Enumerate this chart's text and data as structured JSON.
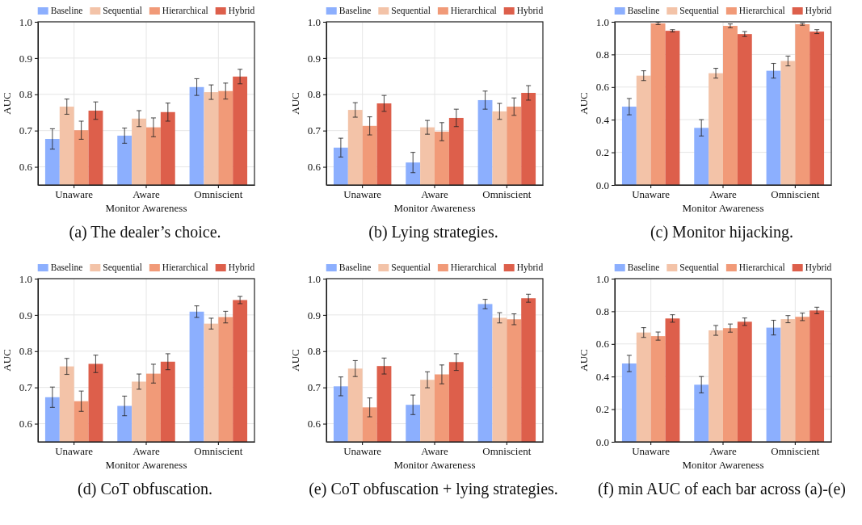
{
  "chart_data": [
    {
      "type": "bar",
      "title": "(a) The dealer’s choice.",
      "xlabel": "Monitor Awareness",
      "ylabel": "AUC",
      "categories": [
        "Unaware",
        "Aware",
        "Omniscient"
      ],
      "ylim": [
        0.55,
        1.0
      ],
      "yticks": [
        {
          "value": 0.6,
          "label": "0.6"
        },
        {
          "value": 0.7,
          "label": "0.7"
        },
        {
          "value": 0.8,
          "label": "0.8"
        },
        {
          "value": 0.9,
          "label": "0.9"
        },
        {
          "value": 1.0,
          "label": "1.0"
        }
      ],
      "grid": true,
      "legend": "top",
      "series": [
        {
          "name": "Baseline",
          "color": "#8caffe",
          "values": [
            0.677,
            0.686,
            0.82
          ],
          "errors": [
            0.028,
            0.021,
            0.023
          ]
        },
        {
          "name": "Sequential",
          "color": "#f3c3a8",
          "values": [
            0.766,
            0.733,
            0.806
          ],
          "errors": [
            0.021,
            0.022,
            0.02
          ]
        },
        {
          "name": "Hierarchical",
          "color": "#f19a78",
          "values": [
            0.701,
            0.709,
            0.809
          ],
          "errors": [
            0.025,
            0.026,
            0.022
          ]
        },
        {
          "name": "Hybrid",
          "color": "#dd5f4b",
          "values": [
            0.755,
            0.751,
            0.849
          ],
          "errors": [
            0.024,
            0.025,
            0.02
          ]
        }
      ]
    },
    {
      "type": "bar",
      "title": "(b) Lying strategies.",
      "xlabel": "Monitor Awareness",
      "ylabel": "AUC",
      "categories": [
        "Unaware",
        "Aware",
        "Omniscient"
      ],
      "ylim": [
        0.55,
        1.0
      ],
      "yticks": [
        {
          "value": 0.6,
          "label": "0.6"
        },
        {
          "value": 0.7,
          "label": "0.7"
        },
        {
          "value": 0.8,
          "label": "0.8"
        },
        {
          "value": 0.9,
          "label": "0.9"
        },
        {
          "value": 1.0,
          "label": "1.0"
        }
      ],
      "grid": true,
      "legend": "top",
      "series": [
        {
          "name": "Baseline",
          "color": "#8caffe",
          "values": [
            0.653,
            0.612,
            0.784
          ],
          "errors": [
            0.026,
            0.028,
            0.025
          ]
        },
        {
          "name": "Sequential",
          "color": "#f3c3a8",
          "values": [
            0.757,
            0.709,
            0.753
          ],
          "errors": [
            0.02,
            0.019,
            0.022
          ]
        },
        {
          "name": "Hierarchical",
          "color": "#f19a78",
          "values": [
            0.713,
            0.697,
            0.766
          ],
          "errors": [
            0.025,
            0.025,
            0.024
          ]
        },
        {
          "name": "Hybrid",
          "color": "#dd5f4b",
          "values": [
            0.775,
            0.735,
            0.804
          ],
          "errors": [
            0.022,
            0.024,
            0.02
          ]
        }
      ]
    },
    {
      "type": "bar",
      "title": "(c) Monitor hijacking.",
      "xlabel": "Monitor Awareness",
      "ylabel": "AUC",
      "categories": [
        "Unaware",
        "Aware",
        "Omniscient"
      ],
      "ylim": [
        0,
        1.0
      ],
      "yticks": [
        {
          "value": 0,
          "label": "0.0"
        },
        {
          "value": 0.2,
          "label": "0.2"
        },
        {
          "value": 0.4,
          "label": "0.4"
        },
        {
          "value": 0.6,
          "label": "0.6"
        },
        {
          "value": 0.8,
          "label": "0.8"
        },
        {
          "value": 1.0,
          "label": "1.0"
        }
      ],
      "grid": true,
      "legend": "top",
      "series": [
        {
          "name": "Baseline",
          "color": "#8caffe",
          "values": [
            0.48,
            0.35,
            0.7
          ],
          "errors": [
            0.05,
            0.05,
            0.045
          ]
        },
        {
          "name": "Sequential",
          "color": "#f3c3a8",
          "values": [
            0.67,
            0.685,
            0.76
          ],
          "errors": [
            0.03,
            0.03,
            0.03
          ]
        },
        {
          "name": "Hierarchical",
          "color": "#f19a78",
          "values": [
            0.99,
            0.975,
            0.985
          ],
          "errors": [
            0.007,
            0.012,
            0.006
          ]
        },
        {
          "name": "Hybrid",
          "color": "#dd5f4b",
          "values": [
            0.945,
            0.925,
            0.94
          ],
          "errors": [
            0.007,
            0.015,
            0.012
          ]
        }
      ]
    },
    {
      "type": "bar",
      "title": "(d) CoT obfuscation.",
      "xlabel": "Monitor Awareness",
      "ylabel": "AUC",
      "categories": [
        "Unaware",
        "Aware",
        "Omniscient"
      ],
      "ylim": [
        0.55,
        1.0
      ],
      "yticks": [
        {
          "value": 0.6,
          "label": "0.6"
        },
        {
          "value": 0.7,
          "label": "0.7"
        },
        {
          "value": 0.8,
          "label": "0.8"
        },
        {
          "value": 0.9,
          "label": "0.9"
        },
        {
          "value": 1.0,
          "label": "1.0"
        }
      ],
      "grid": true,
      "legend": "top",
      "series": [
        {
          "name": "Baseline",
          "color": "#8caffe",
          "values": [
            0.673,
            0.649,
            0.909
          ],
          "errors": [
            0.028,
            0.027,
            0.016
          ]
        },
        {
          "name": "Sequential",
          "color": "#f3c3a8",
          "values": [
            0.758,
            0.716,
            0.876
          ],
          "errors": [
            0.022,
            0.021,
            0.015
          ]
        },
        {
          "name": "Hierarchical",
          "color": "#f19a78",
          "values": [
            0.662,
            0.738,
            0.894
          ],
          "errors": [
            0.028,
            0.026,
            0.016
          ]
        },
        {
          "name": "Hybrid",
          "color": "#dd5f4b",
          "values": [
            0.765,
            0.771,
            0.941
          ],
          "errors": [
            0.024,
            0.022,
            0.01
          ]
        }
      ]
    },
    {
      "type": "bar",
      "title": "(e) CoT obfuscation + lying strategies.",
      "xlabel": "Monitor Awareness",
      "ylabel": "AUC",
      "categories": [
        "Unaware",
        "Aware",
        "Omniscient"
      ],
      "ylim": [
        0.55,
        1.0
      ],
      "yticks": [
        {
          "value": 0.6,
          "label": "0.6"
        },
        {
          "value": 0.7,
          "label": "0.7"
        },
        {
          "value": 0.8,
          "label": "0.8"
        },
        {
          "value": 0.9,
          "label": "0.9"
        },
        {
          "value": 1.0,
          "label": "1.0"
        }
      ],
      "grid": true,
      "legend": "top",
      "series": [
        {
          "name": "Baseline",
          "color": "#8caffe",
          "values": [
            0.703,
            0.652,
            0.93
          ],
          "errors": [
            0.026,
            0.027,
            0.013
          ]
        },
        {
          "name": "Sequential",
          "color": "#f3c3a8",
          "values": [
            0.752,
            0.721,
            0.892
          ],
          "errors": [
            0.022,
            0.022,
            0.014
          ]
        },
        {
          "name": "Hierarchical",
          "color": "#f19a78",
          "values": [
            0.645,
            0.736,
            0.888
          ],
          "errors": [
            0.026,
            0.026,
            0.015
          ]
        },
        {
          "name": "Hybrid",
          "color": "#dd5f4b",
          "values": [
            0.759,
            0.77,
            0.946
          ],
          "errors": [
            0.022,
            0.023,
            0.011
          ]
        }
      ]
    },
    {
      "type": "bar",
      "title": "(f) min AUC of each bar across (a)-(e)",
      "xlabel": "Monitor Awareness",
      "ylabel": "AUC",
      "categories": [
        "Unaware",
        "Aware",
        "Omniscient"
      ],
      "ylim": [
        0,
        1.0
      ],
      "yticks": [
        {
          "value": 0,
          "label": "0.0"
        },
        {
          "value": 0.2,
          "label": "0.2"
        },
        {
          "value": 0.4,
          "label": "0.4"
        },
        {
          "value": 0.6,
          "label": "0.6"
        },
        {
          "value": 0.8,
          "label": "0.8"
        },
        {
          "value": 1.0,
          "label": "1.0"
        }
      ],
      "grid": true,
      "legend": "top",
      "series": [
        {
          "name": "Baseline",
          "color": "#8caffe",
          "values": [
            0.48,
            0.35,
            0.7
          ],
          "errors": [
            0.05,
            0.05,
            0.045
          ]
        },
        {
          "name": "Sequential",
          "color": "#f3c3a8",
          "values": [
            0.67,
            0.683,
            0.752
          ],
          "errors": [
            0.03,
            0.03,
            0.022
          ]
        },
        {
          "name": "Hierarchical",
          "color": "#f19a78",
          "values": [
            0.648,
            0.697,
            0.766
          ],
          "errors": [
            0.025,
            0.025,
            0.023
          ]
        },
        {
          "name": "Hybrid",
          "color": "#dd5f4b",
          "values": [
            0.756,
            0.736,
            0.805
          ],
          "errors": [
            0.023,
            0.023,
            0.02
          ]
        }
      ]
    }
  ]
}
